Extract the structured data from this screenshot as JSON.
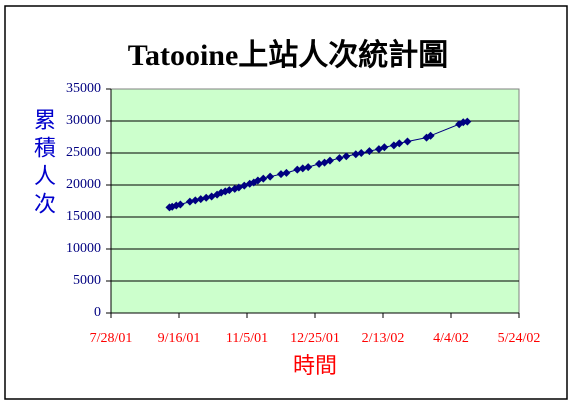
{
  "chart_data": {
    "type": "line",
    "title": "Tatooine上站人次統計圖",
    "x_label": "時間",
    "y_label": "累積人次",
    "x": [
      "2001-09-09",
      "2001-09-11",
      "2001-09-14",
      "2001-09-17",
      "2001-09-24",
      "2001-09-28",
      "2001-10-02",
      "2001-10-06",
      "2001-10-10",
      "2001-10-14",
      "2001-10-17",
      "2001-10-20",
      "2001-10-23",
      "2001-10-27",
      "2001-10-30",
      "2001-11-03",
      "2001-11-07",
      "2001-11-10",
      "2001-11-13",
      "2001-11-17",
      "2001-11-22",
      "2001-11-30",
      "2001-12-04",
      "2001-12-12",
      "2001-12-16",
      "2001-12-20",
      "2001-12-28",
      "2002-01-01",
      "2002-01-05",
      "2002-01-12",
      "2002-01-17",
      "2002-01-24",
      "2002-01-28",
      "2002-02-03",
      "2002-02-10",
      "2002-02-14",
      "2002-02-21",
      "2002-02-25",
      "2002-03-03",
      "2002-03-17",
      "2002-03-20",
      "2002-04-10",
      "2002-04-13",
      "2002-04-16"
    ],
    "series": [
      {
        "color": "#000080",
        "values": [
          16500,
          16600,
          16800,
          16950,
          17400,
          17600,
          17800,
          18000,
          18200,
          18500,
          18800,
          19000,
          19200,
          19400,
          19600,
          19900,
          20200,
          20400,
          20700,
          21000,
          21300,
          21700,
          21900,
          22400,
          22600,
          22800,
          23300,
          23500,
          23800,
          24200,
          24500,
          24800,
          25000,
          25300,
          25600,
          25900,
          26200,
          26500,
          26800,
          27400,
          27700,
          29500,
          29800,
          29900
        ]
      }
    ],
    "xlim": [
      "2001-07-28",
      "2002-05-24"
    ],
    "xticks": [
      {
        "value": "2001-07-28",
        "label": "7/28/01"
      },
      {
        "value": "2001-09-16",
        "label": "9/16/01"
      },
      {
        "value": "2001-11-05",
        "label": "11/5/01"
      },
      {
        "value": "2001-12-25",
        "label": "12/25/01"
      },
      {
        "value": "2002-02-13",
        "label": "2/13/02"
      },
      {
        "value": "2002-04-04",
        "label": "4/4/02"
      },
      {
        "value": "2002-05-24",
        "label": "5/24/02"
      }
    ],
    "ylim": [
      0,
      35000
    ],
    "yticks": [
      0,
      5000,
      10000,
      15000,
      20000,
      25000,
      30000,
      35000
    ],
    "grid": true
  }
}
